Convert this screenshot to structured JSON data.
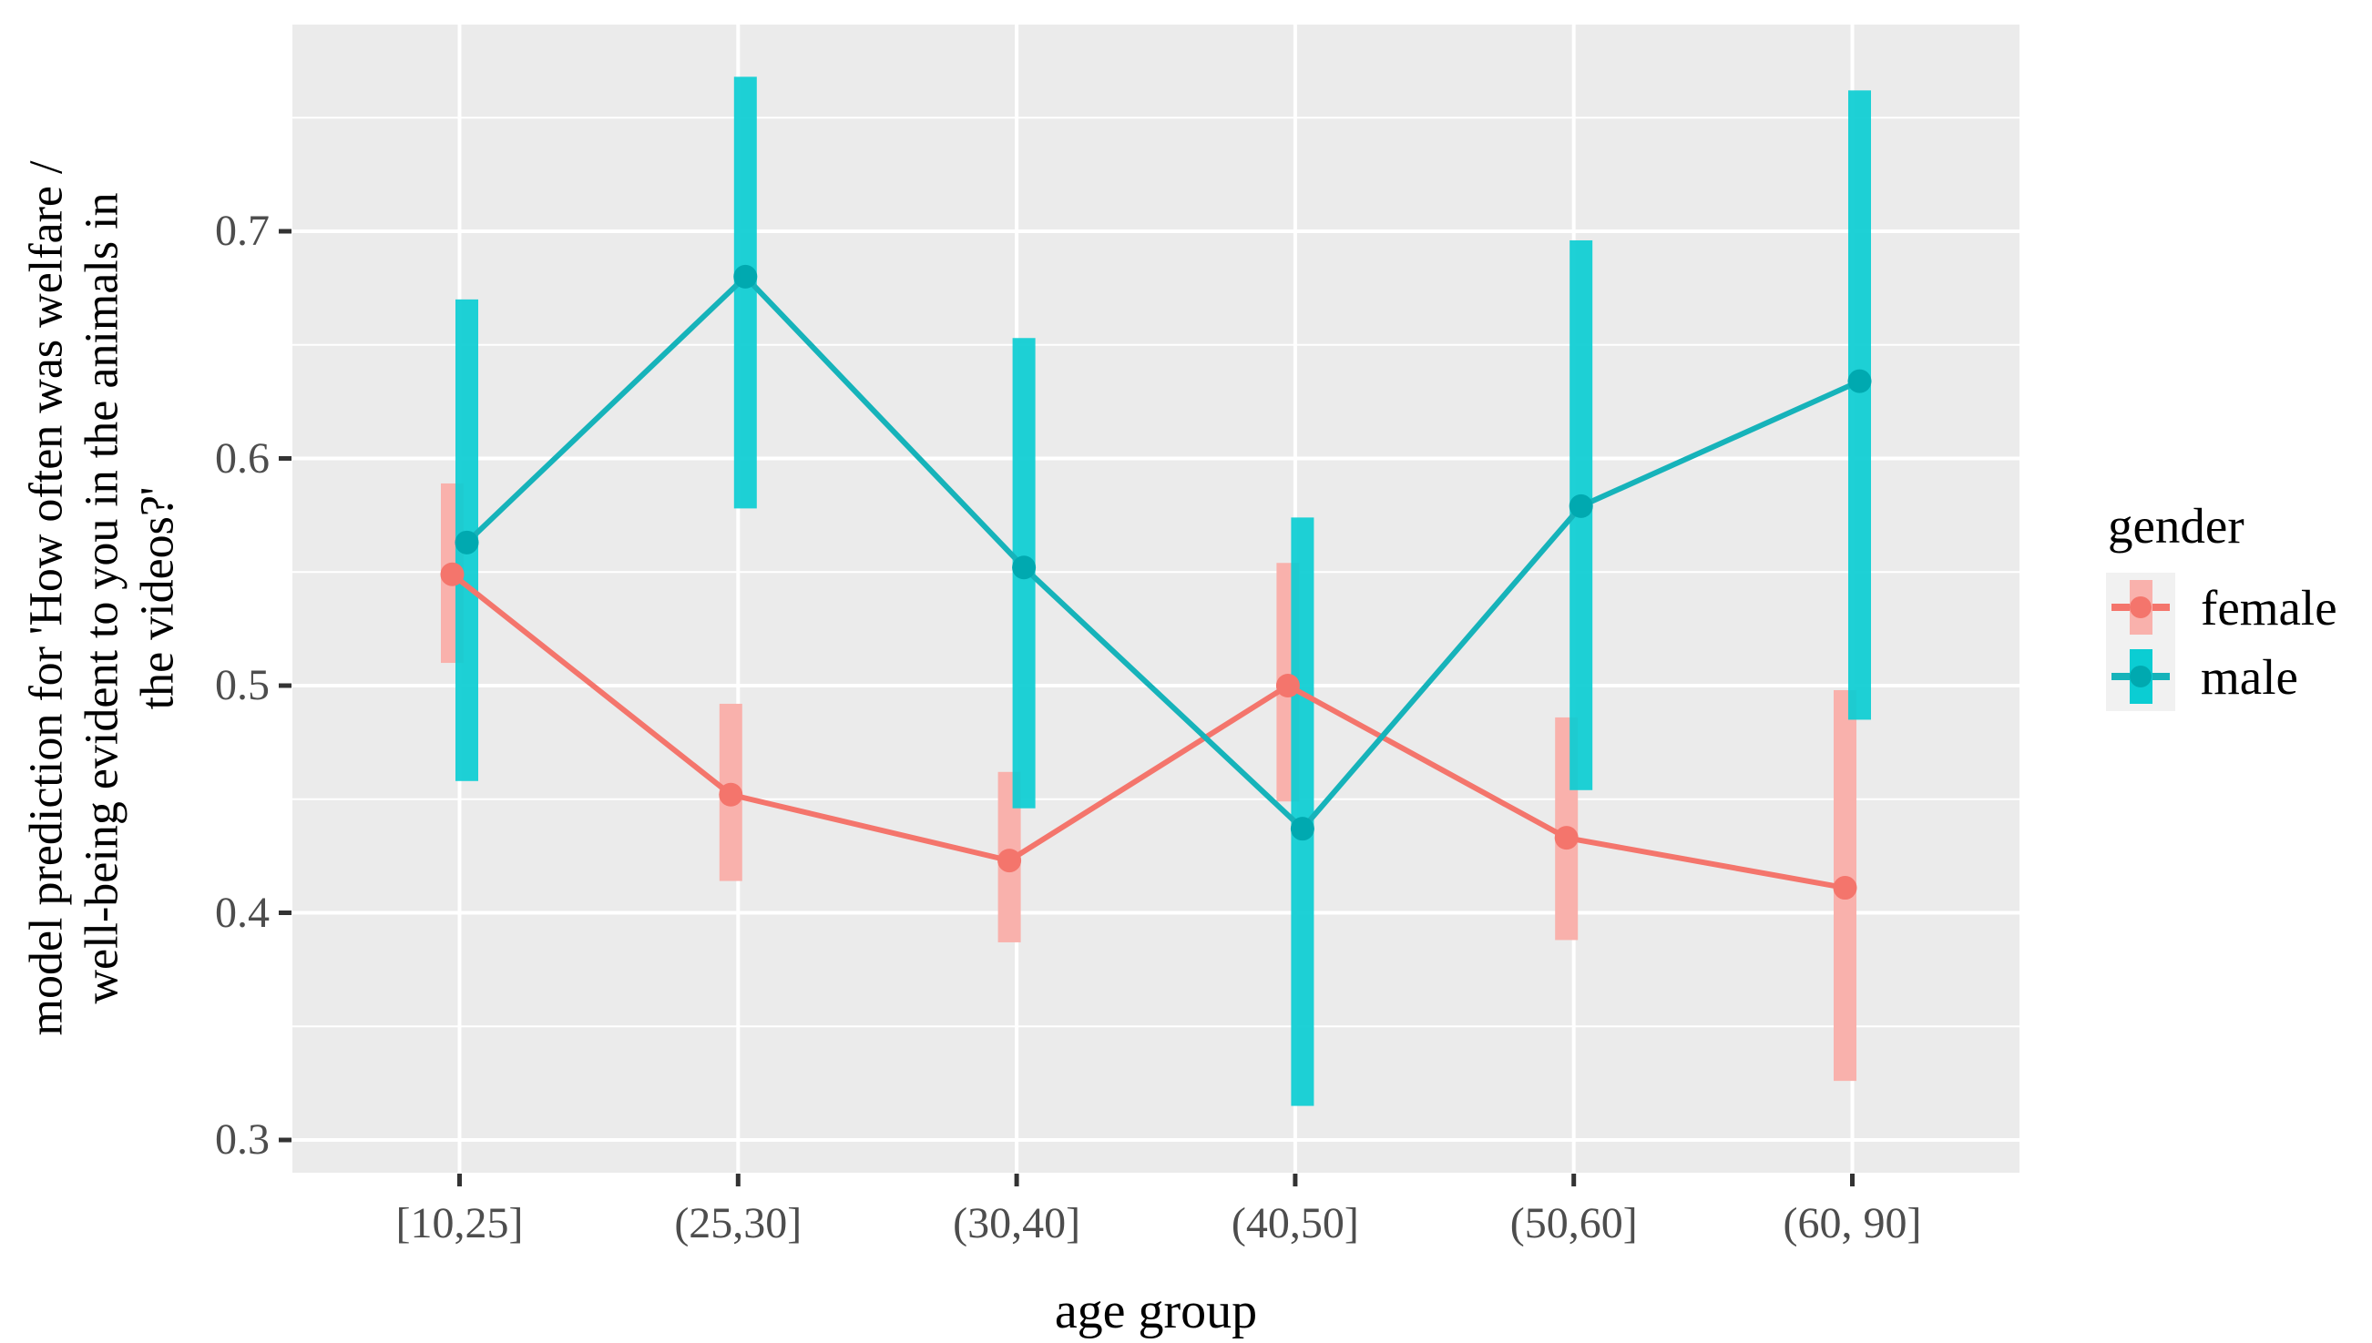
{
  "figure": {
    "background": "#ffffff",
    "panel_background": "#EBEBEB",
    "gridline_color": "#FFFFFF",
    "tick_mark_color": "#333333",
    "tick_label_color": "#4d4d4d"
  },
  "legend": {
    "title": "gender",
    "position": "right",
    "key_background": "#f1f1f1",
    "items": [
      {
        "label": "female"
      },
      {
        "label": "male"
      }
    ]
  },
  "chart_data": {
    "type": "pointrange-line",
    "title": "",
    "xlabel": "age group",
    "ylabel": "model prediction for 'How often was welfare / well-being evident to you in the animals in the videos?'",
    "ylabel_lines": [
      "model prediction for 'How often was welfare /",
      "well-being evident to you in the animals in",
      "the videos?'"
    ],
    "categories": [
      "[10,25]",
      "(25,30]",
      "(30,40]",
      "(40,50]",
      "(50,60]",
      "(60, 90]"
    ],
    "y_tick_labels": [
      "0.3",
      "0.4",
      "0.5",
      "0.6",
      "0.7"
    ],
    "y_tick_values": [
      0.3,
      0.4,
      0.5,
      0.6,
      0.7
    ],
    "y_minor_tick_values": [
      0.35,
      0.45,
      0.55,
      0.65,
      0.75
    ],
    "ylim": [
      0.286,
      0.791
    ],
    "grid": "white major and minor horizontal+vertical lines on grey panel",
    "legend_position": "right",
    "series": [
      {
        "name": "female",
        "color": "#F4756C",
        "point_color": "#F4756C",
        "range_color": "#F9B1AC",
        "values": [
          0.549,
          0.452,
          0.423,
          0.5,
          0.433,
          0.411
        ],
        "lower": [
          0.51,
          0.414,
          0.387,
          0.449,
          0.388,
          0.326
        ],
        "upper": [
          0.589,
          0.492,
          0.462,
          0.554,
          0.486,
          0.498
        ]
      },
      {
        "name": "male",
        "color": "#16B3BA",
        "point_color": "#00A9B0",
        "range_color": "#0BCDD3",
        "values": [
          0.563,
          0.68,
          0.552,
          0.437,
          0.579,
          0.634
        ],
        "lower": [
          0.458,
          0.578,
          0.446,
          0.315,
          0.454,
          0.485
        ],
        "upper": [
          0.67,
          0.768,
          0.653,
          0.574,
          0.696,
          0.762
        ]
      }
    ]
  }
}
